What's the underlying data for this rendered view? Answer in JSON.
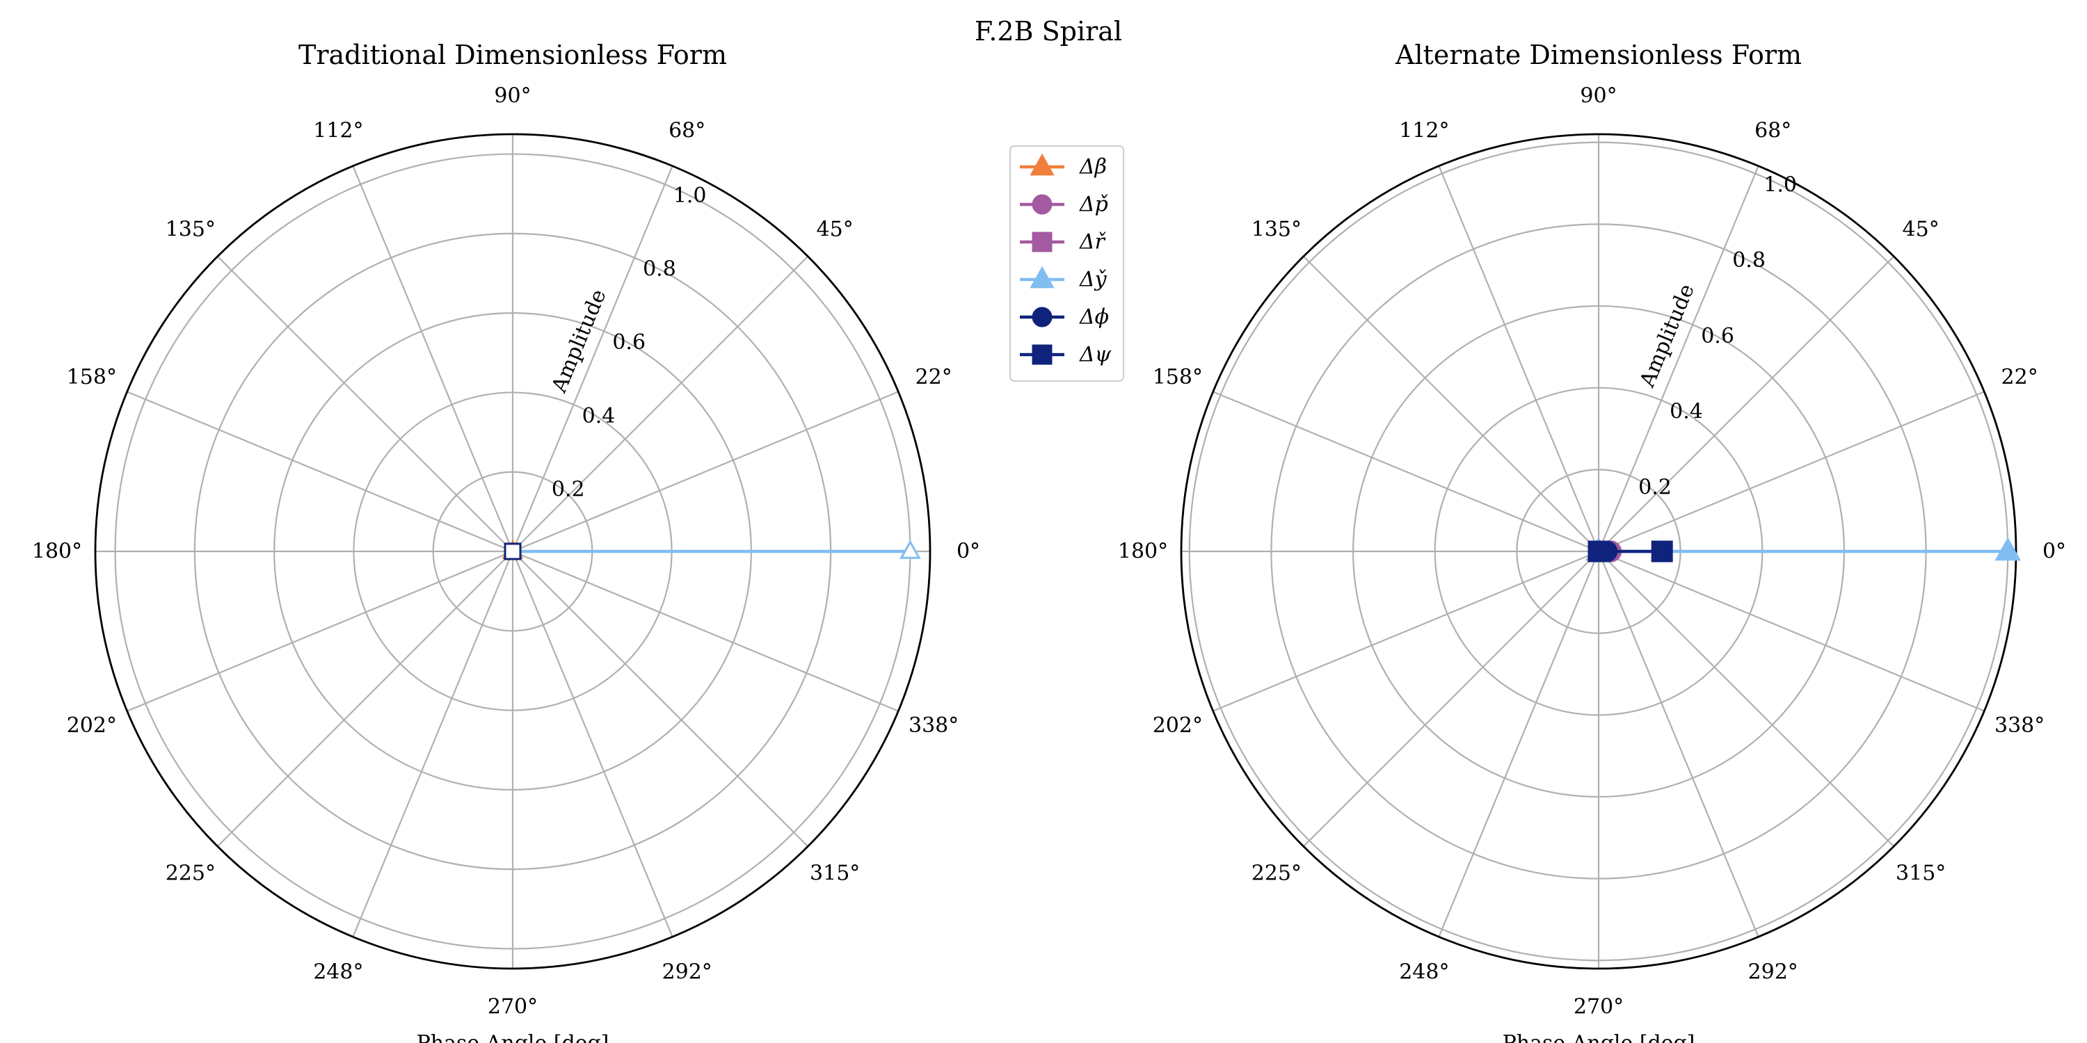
{
  "figure": {
    "title": "F.2B Spiral"
  },
  "chart_data": [
    {
      "type": "polar",
      "title": "Traditional Dimensionless Form",
      "xlabel": "Phase Angle [deg]",
      "ylabel": "Amplitude",
      "rlim": [
        0,
        1.05
      ],
      "r_ticks": [
        "0.2",
        "0.4",
        "0.6",
        "0.8",
        "1.0"
      ],
      "r_tick_values": [
        0.2,
        0.4,
        0.6,
        0.8,
        1.0
      ],
      "theta_ticks": [
        "0°",
        "22°",
        "45°",
        "68°",
        "90°",
        "112°",
        "135°",
        "158°",
        "180°",
        "202°",
        "225°",
        "248°",
        "270°",
        "292°",
        "315°",
        "338°"
      ],
      "theta_tick_values": [
        0,
        22.5,
        45,
        67.5,
        90,
        112.5,
        135,
        157.5,
        180,
        202.5,
        225,
        247.5,
        270,
        292.5,
        315,
        337.5
      ],
      "grid": true,
      "series": [
        {
          "name": "Δβ",
          "color": "#f07f3c",
          "marker": "triangle",
          "phase_deg": 0,
          "amplitude": 0.0
        },
        {
          "name": "Δp̌",
          "color": "#a45aa0",
          "marker": "circle",
          "phase_deg": 0,
          "amplitude": 0.0
        },
        {
          "name": "Δř",
          "color": "#a45aa0",
          "marker": "square",
          "phase_deg": 0,
          "amplitude": 0.0
        },
        {
          "name": "Δy̌",
          "color": "#82bdf2",
          "marker": "triangle",
          "phase_deg": 0,
          "amplitude": 1.0
        },
        {
          "name": "Δϕ",
          "color": "#10237c",
          "marker": "circle",
          "phase_deg": 0,
          "amplitude": 0.0
        },
        {
          "name": "Δψ",
          "color": "#10237c",
          "marker": "square",
          "phase_deg": 0,
          "amplitude": 0.0
        }
      ]
    },
    {
      "type": "polar",
      "title": "Alternate Dimensionless Form",
      "xlabel": "Phase Angle [deg]",
      "ylabel": "Amplitude",
      "rlim": [
        0,
        1.02
      ],
      "r_ticks": [
        "0.2",
        "0.4",
        "0.6",
        "0.8",
        "1.0"
      ],
      "r_tick_values": [
        0.2,
        0.4,
        0.6,
        0.8,
        1.0
      ],
      "theta_ticks": [
        "0°",
        "22°",
        "45°",
        "68°",
        "90°",
        "112°",
        "135°",
        "158°",
        "180°",
        "202°",
        "225°",
        "248°",
        "270°",
        "292°",
        "315°",
        "338°"
      ],
      "theta_tick_values": [
        0,
        22.5,
        45,
        67.5,
        90,
        112.5,
        135,
        157.5,
        180,
        202.5,
        225,
        247.5,
        270,
        292.5,
        315,
        337.5
      ],
      "grid": true,
      "series": [
        {
          "name": "Δβ",
          "color": "#f07f3c",
          "marker": "triangle",
          "phase_deg": 0,
          "amplitude": 0.0
        },
        {
          "name": "Δp̌",
          "color": "#a45aa0",
          "marker": "circle",
          "phase_deg": 0,
          "amplitude": 0.03
        },
        {
          "name": "Δř",
          "color": "#a45aa0",
          "marker": "square",
          "phase_deg": 0,
          "amplitude": 0.01
        },
        {
          "name": "Δy̌",
          "color": "#82bdf2",
          "marker": "triangle",
          "phase_deg": 0,
          "amplitude": 1.0
        },
        {
          "name": "Δϕ",
          "color": "#10237c",
          "marker": "circle",
          "phase_deg": 0,
          "amplitude": 0.02
        },
        {
          "name": "Δψ",
          "color": "#10237c",
          "marker": "square",
          "phase_deg": 0,
          "amplitude": 0.155
        }
      ]
    }
  ],
  "legend": {
    "placement": "between-plots-top",
    "items": [
      {
        "label": "Δβ",
        "color": "#f07f3c",
        "marker": "triangle"
      },
      {
        "label": "Δp̌",
        "color": "#a45aa0",
        "marker": "circle"
      },
      {
        "label": "Δř",
        "color": "#a45aa0",
        "marker": "square"
      },
      {
        "label": "Δy̌",
        "color": "#82bdf2",
        "marker": "triangle"
      },
      {
        "label": "Δϕ",
        "color": "#10237c",
        "marker": "circle"
      },
      {
        "label": "Δψ",
        "color": "#10237c",
        "marker": "square"
      }
    ]
  },
  "colors": {
    "grid": "#b0b0b0",
    "spine": "#000000"
  }
}
